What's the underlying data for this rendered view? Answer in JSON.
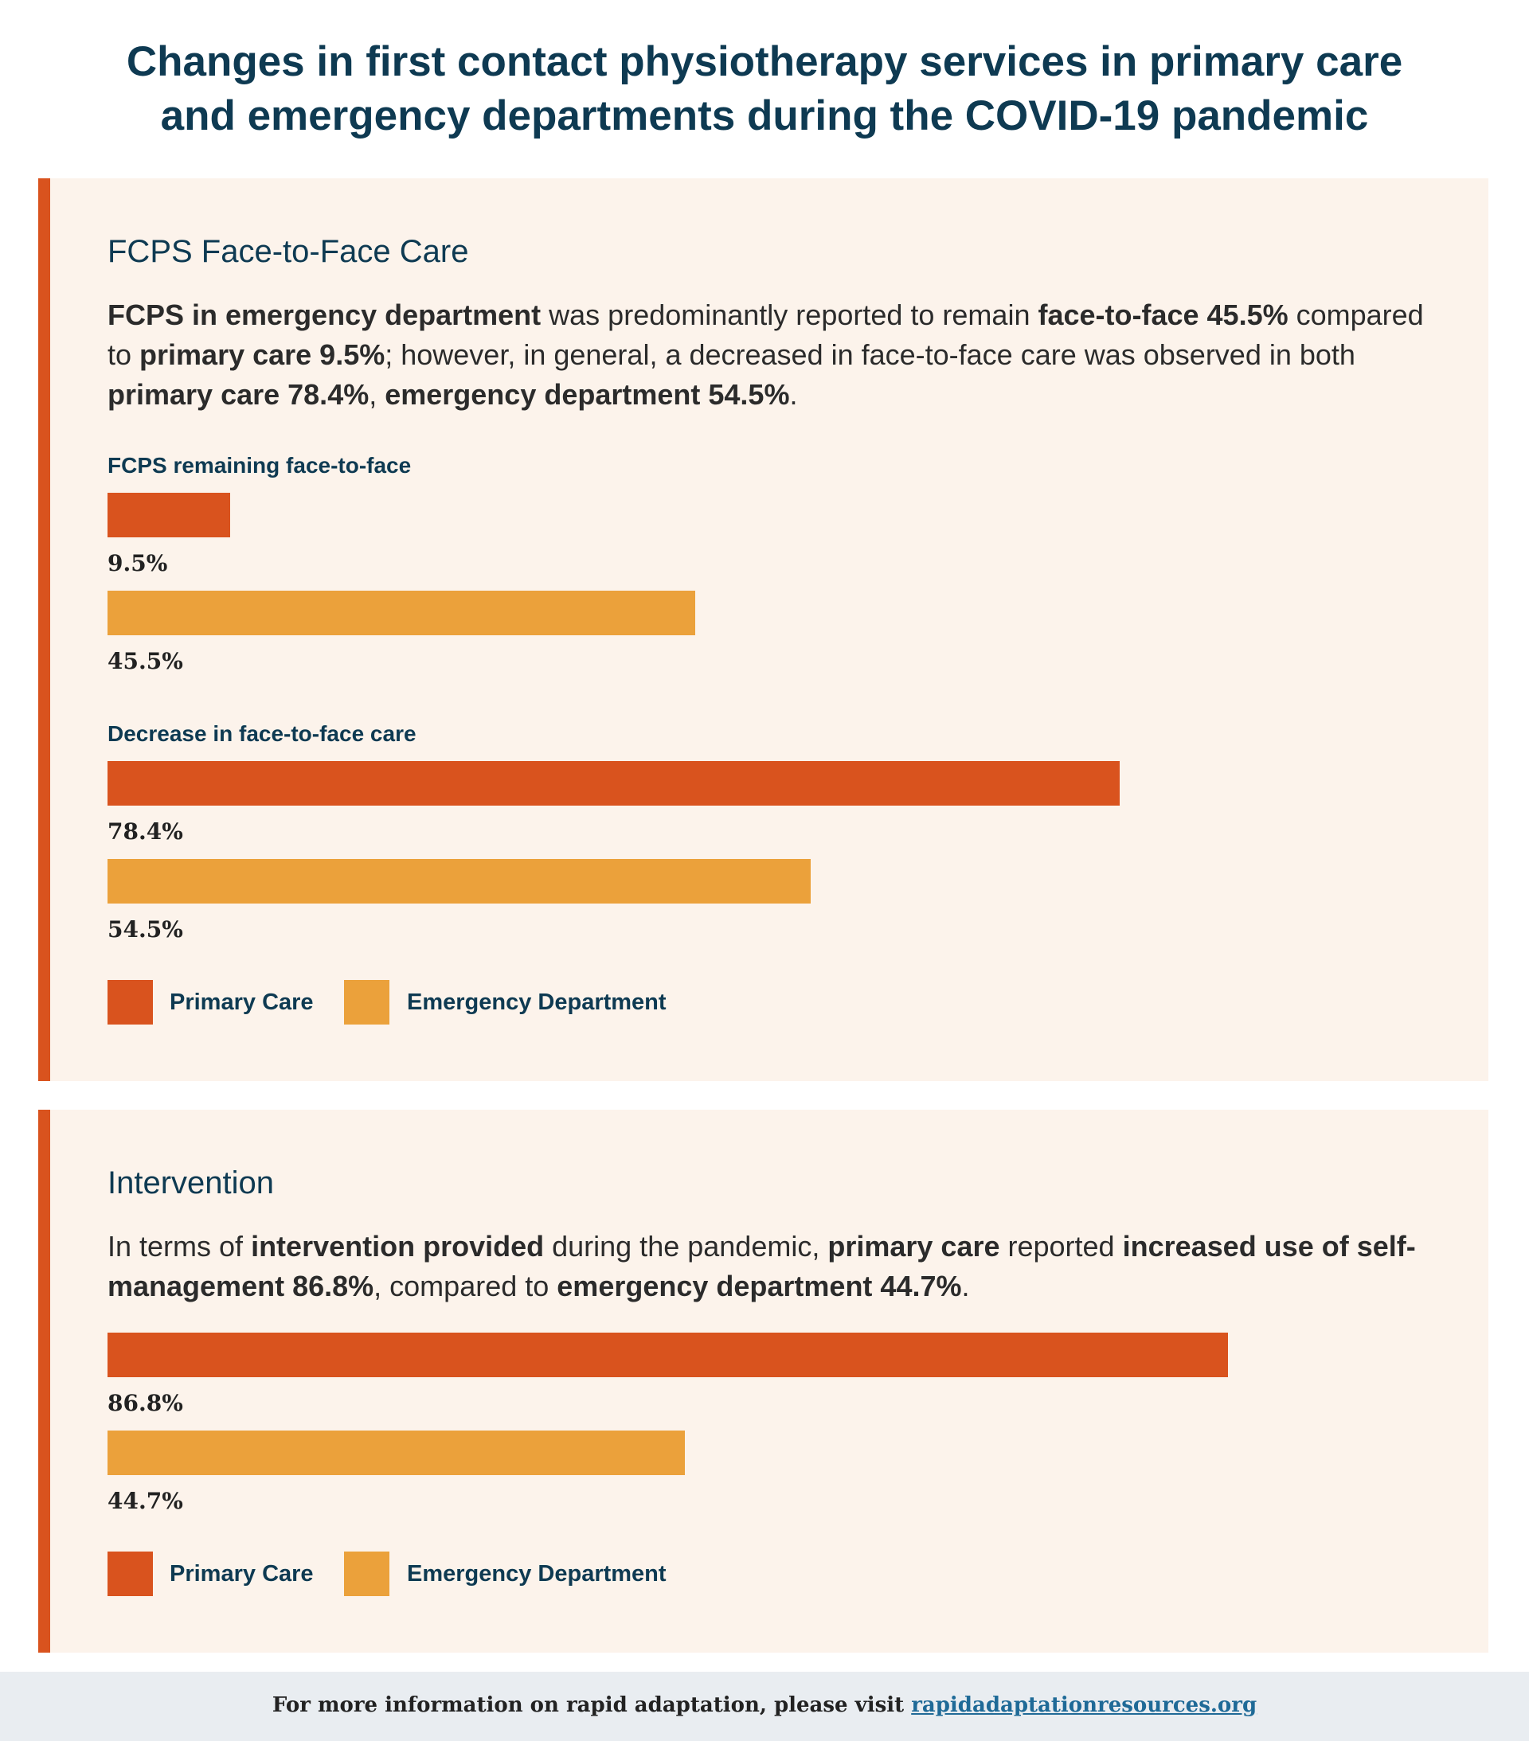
{
  "page": {
    "title_line1": "Changes in first contact physiotherapy services in primary care",
    "title_line2": "and emergency departments during the COVID-19 pandemic"
  },
  "colors": {
    "primary_care": "#d9531e",
    "emergency_department": "#eba13b",
    "heading": "#0e3a52",
    "panel_bg": "#fcf3eb"
  },
  "section1": {
    "heading": "FCPS Face-to-Face Care",
    "summary": {
      "s1": "FCPS in emergency department",
      "s2": " was predominantly reported to remain ",
      "s3": "face-to-face 45.5%",
      "s4": " compared to ",
      "s5": "primary care 9.5%",
      "s6": "; however, in general, a decreased in face-to-face care was observed in both ",
      "s7": "primary care 78.4%",
      "s8": ", ",
      "s9": "emergency department 54.5%",
      "s10": "."
    },
    "legend": {
      "primary_care": "Primary Care",
      "emergency_department": "Emergency Department"
    }
  },
  "section2": {
    "heading": "Intervention",
    "summary": {
      "s1": "In terms of ",
      "s2": "intervention provided",
      "s3": " during the pandemic, ",
      "s4": "primary care",
      "s5": " reported ",
      "s6": "increased use of self-management 86.8%",
      "s7": ", compared to ",
      "s8": "emergency department 44.7%",
      "s9": "."
    },
    "legend": {
      "primary_care": "Primary Care",
      "emergency_department": "Emergency Department"
    }
  },
  "chart_data": [
    {
      "type": "bar",
      "title": "FCPS remaining face-to-face",
      "categories": [
        "Primary Care",
        "Emergency Department"
      ],
      "values": [
        9.5,
        45.5
      ],
      "value_labels": [
        "9.5%",
        "45.5%"
      ],
      "unit": "%",
      "xlim": [
        0,
        100
      ],
      "orientation": "horizontal"
    },
    {
      "type": "bar",
      "title": "Decrease in face-to-face care",
      "categories": [
        "Primary Care",
        "Emergency Department"
      ],
      "values": [
        78.4,
        54.5
      ],
      "value_labels": [
        "78.4%",
        "54.5%"
      ],
      "unit": "%",
      "xlim": [
        0,
        100
      ],
      "orientation": "horizontal"
    },
    {
      "type": "bar",
      "title": "",
      "categories": [
        "Primary Care",
        "Emergency Department"
      ],
      "values": [
        86.8,
        44.7
      ],
      "value_labels": [
        "86.8%",
        "44.7%"
      ],
      "unit": "%",
      "xlim": [
        0,
        100
      ],
      "orientation": "horizontal"
    }
  ],
  "footer": {
    "text": "For more information on rapid adaptation, please visit ",
    "link": "rapidadaptationresources.org"
  }
}
